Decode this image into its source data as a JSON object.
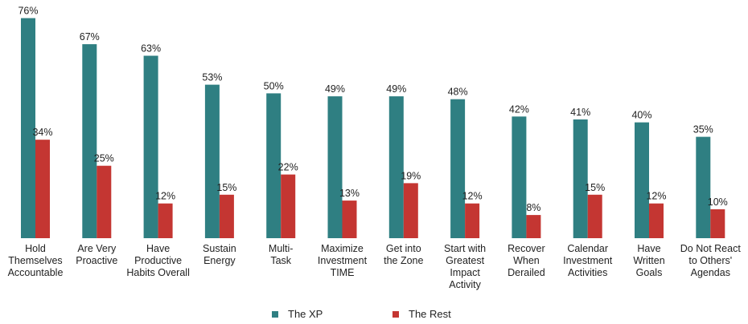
{
  "chart_data": {
    "type": "bar",
    "categories": [
      "Hold\nThemselves\nAccountable",
      "Are Very\nProactive",
      "Have\nProductive\nHabits Overall",
      "Sustain\nEnergy",
      "Multi-\nTask",
      "Maximize\nInvestment\nTIME",
      "Get into\nthe Zone",
      "Start with\nGreatest\nImpact\nActivity",
      "Recover\nWhen\nDerailed",
      "Calendar\nInvestment\nActivities",
      "Have\nWritten\nGoals",
      "Do Not React\nto Others'\nAgendas"
    ],
    "series": [
      {
        "name": "The XP",
        "color": "#2f7f82",
        "values": [
          76,
          67,
          63,
          53,
          50,
          49,
          49,
          48,
          42,
          41,
          40,
          35
        ]
      },
      {
        "name": "The Rest",
        "color": "#c43632",
        "values": [
          34,
          25,
          12,
          15,
          22,
          13,
          19,
          12,
          8,
          15,
          12,
          10
        ]
      }
    ],
    "value_suffix": "%",
    "ylim": [
      0,
      80
    ],
    "legend_position": "bottom",
    "grid": false
  }
}
